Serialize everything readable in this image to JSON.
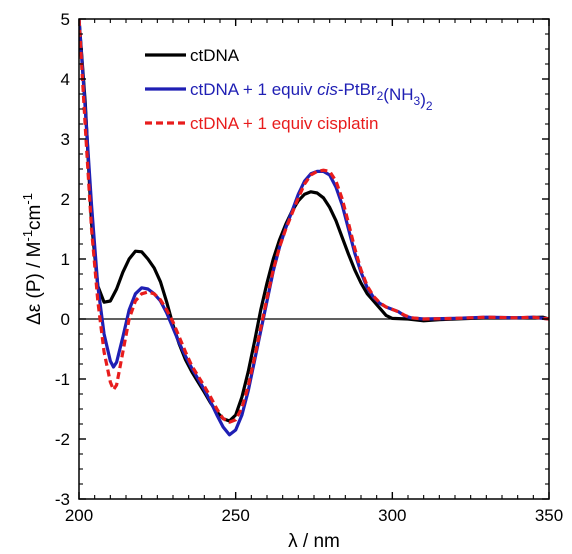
{
  "chart_data": {
    "type": "line",
    "title": "",
    "xlabel": "λ / nm",
    "ylabel_parts": {
      "main": "Δε (P) / M",
      "sup1": "-1",
      "mid": "cm",
      "sup2": "-1"
    },
    "xlim": [
      200,
      350
    ],
    "ylim": [
      -3,
      5
    ],
    "xticks": [
      "200",
      "250",
      "300",
      "350"
    ],
    "yticks": [
      "-3",
      "-2",
      "-1",
      "0",
      "1",
      "2",
      "3",
      "4",
      "5"
    ],
    "x_minor_step": 5,
    "y_minor_step": 0.25,
    "zero_line": true,
    "grid": false,
    "legend_position": "top-center",
    "series": [
      {
        "name": "ctDNA",
        "legend_parts": [
          {
            "t": "ctDNA"
          }
        ],
        "color": "#000000",
        "dash": "solid",
        "points": [
          [
            200,
            5.0
          ],
          [
            202,
            3.6
          ],
          [
            204,
            1.6
          ],
          [
            206,
            0.55
          ],
          [
            208,
            0.28
          ],
          [
            210,
            0.3
          ],
          [
            212,
            0.5
          ],
          [
            214,
            0.78
          ],
          [
            216,
            1.0
          ],
          [
            218,
            1.13
          ],
          [
            220,
            1.12
          ],
          [
            222,
            1.0
          ],
          [
            224,
            0.85
          ],
          [
            226,
            0.62
          ],
          [
            228,
            0.28
          ],
          [
            230,
            -0.1
          ],
          [
            232,
            -0.42
          ],
          [
            234,
            -0.68
          ],
          [
            236,
            -0.88
          ],
          [
            238,
            -1.05
          ],
          [
            240,
            -1.22
          ],
          [
            242,
            -1.4
          ],
          [
            244,
            -1.55
          ],
          [
            246,
            -1.66
          ],
          [
            248,
            -1.7
          ],
          [
            250,
            -1.6
          ],
          [
            252,
            -1.3
          ],
          [
            254,
            -0.88
          ],
          [
            256,
            -0.38
          ],
          [
            258,
            0.15
          ],
          [
            260,
            0.6
          ],
          [
            262,
            1.0
          ],
          [
            264,
            1.32
          ],
          [
            266,
            1.58
          ],
          [
            268,
            1.8
          ],
          [
            270,
            1.97
          ],
          [
            272,
            2.08
          ],
          [
            274,
            2.12
          ],
          [
            276,
            2.1
          ],
          [
            278,
            2.02
          ],
          [
            280,
            1.86
          ],
          [
            282,
            1.64
          ],
          [
            284,
            1.36
          ],
          [
            286,
            1.08
          ],
          [
            288,
            0.82
          ],
          [
            290,
            0.6
          ],
          [
            292,
            0.42
          ],
          [
            294,
            0.3
          ],
          [
            296,
            0.18
          ],
          [
            298,
            0.06
          ],
          [
            300,
            0.01
          ],
          [
            305,
            0.0
          ],
          [
            310,
            -0.03
          ],
          [
            315,
            -0.01
          ],
          [
            320,
            0.0
          ],
          [
            330,
            0.02
          ],
          [
            340,
            0.02
          ],
          [
            348,
            0.03
          ],
          [
            350,
            0.0
          ]
        ]
      },
      {
        "name": "ctDNA + 1 equiv cis-PtBr2(NH3)2",
        "legend_parts": [
          {
            "t": "ctDNA + 1 equiv "
          },
          {
            "t": "cis",
            "i": true
          },
          {
            "t": "-PtBr"
          },
          {
            "t": "2",
            "sub": true
          },
          {
            "t": "(NH"
          },
          {
            "t": "3",
            "sub": true
          },
          {
            "t": ")"
          },
          {
            "t": "2",
            "sub": true
          }
        ],
        "color": "#1f1fb4",
        "dash": "solid",
        "points": [
          [
            200,
            5.0
          ],
          [
            202,
            3.5
          ],
          [
            204,
            1.9
          ],
          [
            206,
            0.55
          ],
          [
            208,
            -0.25
          ],
          [
            210,
            -0.7
          ],
          [
            211,
            -0.8
          ],
          [
            212,
            -0.72
          ],
          [
            214,
            -0.3
          ],
          [
            216,
            0.15
          ],
          [
            218,
            0.42
          ],
          [
            220,
            0.52
          ],
          [
            222,
            0.5
          ],
          [
            224,
            0.42
          ],
          [
            226,
            0.3
          ],
          [
            228,
            0.1
          ],
          [
            230,
            -0.15
          ],
          [
            232,
            -0.4
          ],
          [
            234,
            -0.62
          ],
          [
            236,
            -0.82
          ],
          [
            238,
            -1.0
          ],
          [
            240,
            -1.18
          ],
          [
            242,
            -1.38
          ],
          [
            244,
            -1.6
          ],
          [
            246,
            -1.8
          ],
          [
            248,
            -1.93
          ],
          [
            250,
            -1.85
          ],
          [
            252,
            -1.6
          ],
          [
            254,
            -1.2
          ],
          [
            256,
            -0.7
          ],
          [
            258,
            -0.2
          ],
          [
            260,
            0.3
          ],
          [
            262,
            0.8
          ],
          [
            264,
            1.2
          ],
          [
            266,
            1.52
          ],
          [
            268,
            1.8
          ],
          [
            270,
            2.08
          ],
          [
            272,
            2.3
          ],
          [
            274,
            2.42
          ],
          [
            276,
            2.46
          ],
          [
            278,
            2.46
          ],
          [
            280,
            2.4
          ],
          [
            282,
            2.2
          ],
          [
            284,
            1.9
          ],
          [
            286,
            1.5
          ],
          [
            288,
            1.1
          ],
          [
            290,
            0.78
          ],
          [
            292,
            0.52
          ],
          [
            294,
            0.36
          ],
          [
            296,
            0.26
          ],
          [
            298,
            0.2
          ],
          [
            300,
            0.16
          ],
          [
            302,
            0.12
          ],
          [
            304,
            0.05
          ],
          [
            306,
            0.02
          ],
          [
            310,
            0.0
          ],
          [
            320,
            0.01
          ],
          [
            330,
            0.03
          ],
          [
            340,
            0.02
          ],
          [
            345,
            0.03
          ],
          [
            350,
            0.0
          ]
        ]
      },
      {
        "name": "ctDNA + 1 equiv cisplatin",
        "legend_parts": [
          {
            "t": "ctDNA + 1 equiv cisplatin"
          }
        ],
        "color": "#e81c1c",
        "dash": "dashed",
        "points": [
          [
            200,
            5.0
          ],
          [
            202,
            3.2
          ],
          [
            204,
            1.5
          ],
          [
            206,
            0.3
          ],
          [
            208,
            -0.55
          ],
          [
            210,
            -1.05
          ],
          [
            211,
            -1.18
          ],
          [
            212,
            -1.1
          ],
          [
            214,
            -0.55
          ],
          [
            216,
            0.0
          ],
          [
            218,
            0.3
          ],
          [
            220,
            0.42
          ],
          [
            222,
            0.45
          ],
          [
            224,
            0.42
          ],
          [
            226,
            0.32
          ],
          [
            228,
            0.15
          ],
          [
            230,
            -0.05
          ],
          [
            232,
            -0.3
          ],
          [
            234,
            -0.55
          ],
          [
            236,
            -0.78
          ],
          [
            238,
            -0.95
          ],
          [
            240,
            -1.12
          ],
          [
            242,
            -1.3
          ],
          [
            244,
            -1.5
          ],
          [
            246,
            -1.66
          ],
          [
            248,
            -1.72
          ],
          [
            250,
            -1.68
          ],
          [
            252,
            -1.48
          ],
          [
            254,
            -1.12
          ],
          [
            256,
            -0.65
          ],
          [
            258,
            -0.15
          ],
          [
            260,
            0.35
          ],
          [
            262,
            0.82
          ],
          [
            264,
            1.2
          ],
          [
            266,
            1.5
          ],
          [
            268,
            1.76
          ],
          [
            270,
            2.02
          ],
          [
            272,
            2.25
          ],
          [
            274,
            2.4
          ],
          [
            276,
            2.46
          ],
          [
            278,
            2.48
          ],
          [
            280,
            2.46
          ],
          [
            282,
            2.3
          ],
          [
            284,
            2.0
          ],
          [
            286,
            1.6
          ],
          [
            288,
            1.18
          ],
          [
            290,
            0.82
          ],
          [
            292,
            0.55
          ],
          [
            294,
            0.38
          ],
          [
            296,
            0.27
          ],
          [
            298,
            0.2
          ],
          [
            300,
            0.16
          ],
          [
            302,
            0.12
          ],
          [
            304,
            0.06
          ],
          [
            306,
            0.02
          ],
          [
            310,
            0.0
          ],
          [
            320,
            0.01
          ],
          [
            330,
            0.03
          ],
          [
            340,
            0.02
          ],
          [
            345,
            0.03
          ],
          [
            350,
            0.0
          ]
        ]
      }
    ]
  }
}
